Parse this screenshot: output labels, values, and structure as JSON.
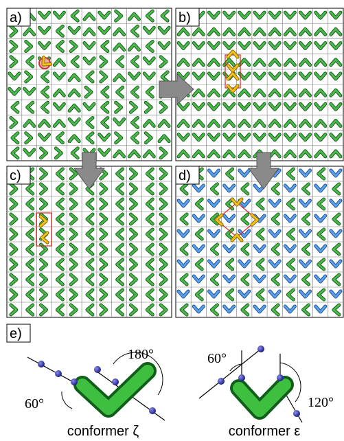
{
  "panels": [
    {
      "label": "a)"
    },
    {
      "label": "b)"
    },
    {
      "label": "c)"
    },
    {
      "label": "d)"
    }
  ],
  "conformers": {
    "label": "e)",
    "zeta": {
      "angle_upper": "180°",
      "angle_lower": "60°",
      "caption": "conformer ζ"
    },
    "epsilon": {
      "angle_upper": "60°",
      "angle_lower": "120°",
      "caption": "conformer ε"
    }
  }
}
